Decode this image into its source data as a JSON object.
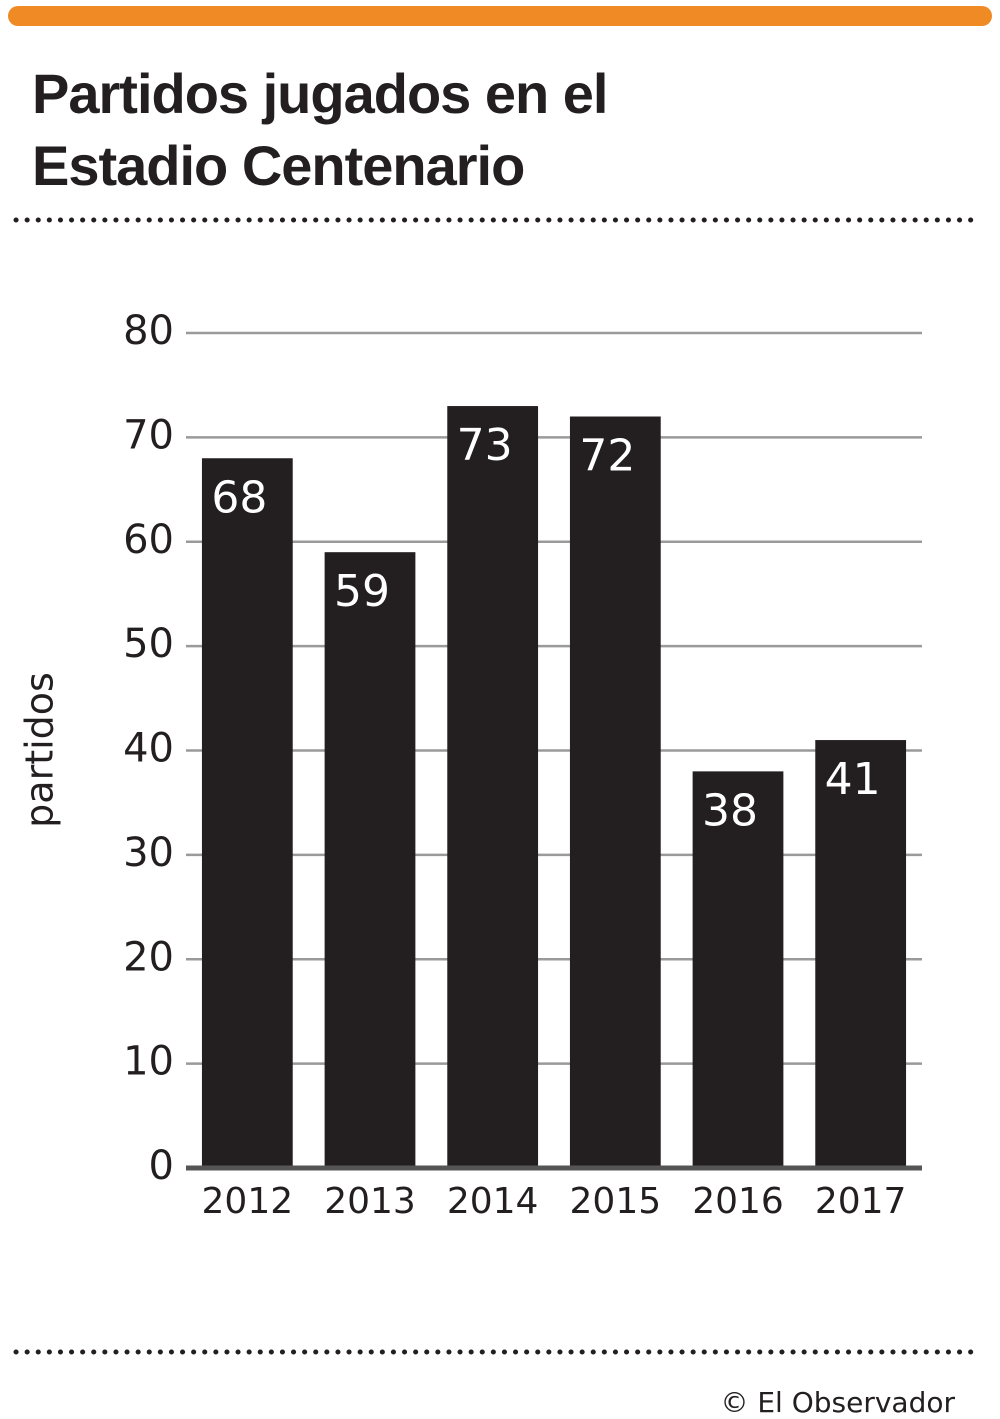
{
  "chart_data": {
    "type": "bar",
    "title": "Partidos jugados en el Estadio Centenario",
    "y_label": "partidos",
    "categories": [
      "2012",
      "2013",
      "2014",
      "2015",
      "2016",
      "2017"
    ],
    "values": [
      68,
      59,
      73,
      72,
      38,
      41
    ],
    "color": "#231f20",
    "ylim": [
      0,
      80
    ],
    "yticks": [
      0,
      10,
      20,
      30,
      40,
      50,
      60,
      70,
      80
    ],
    "grid": true,
    "source": "© El Observador"
  }
}
